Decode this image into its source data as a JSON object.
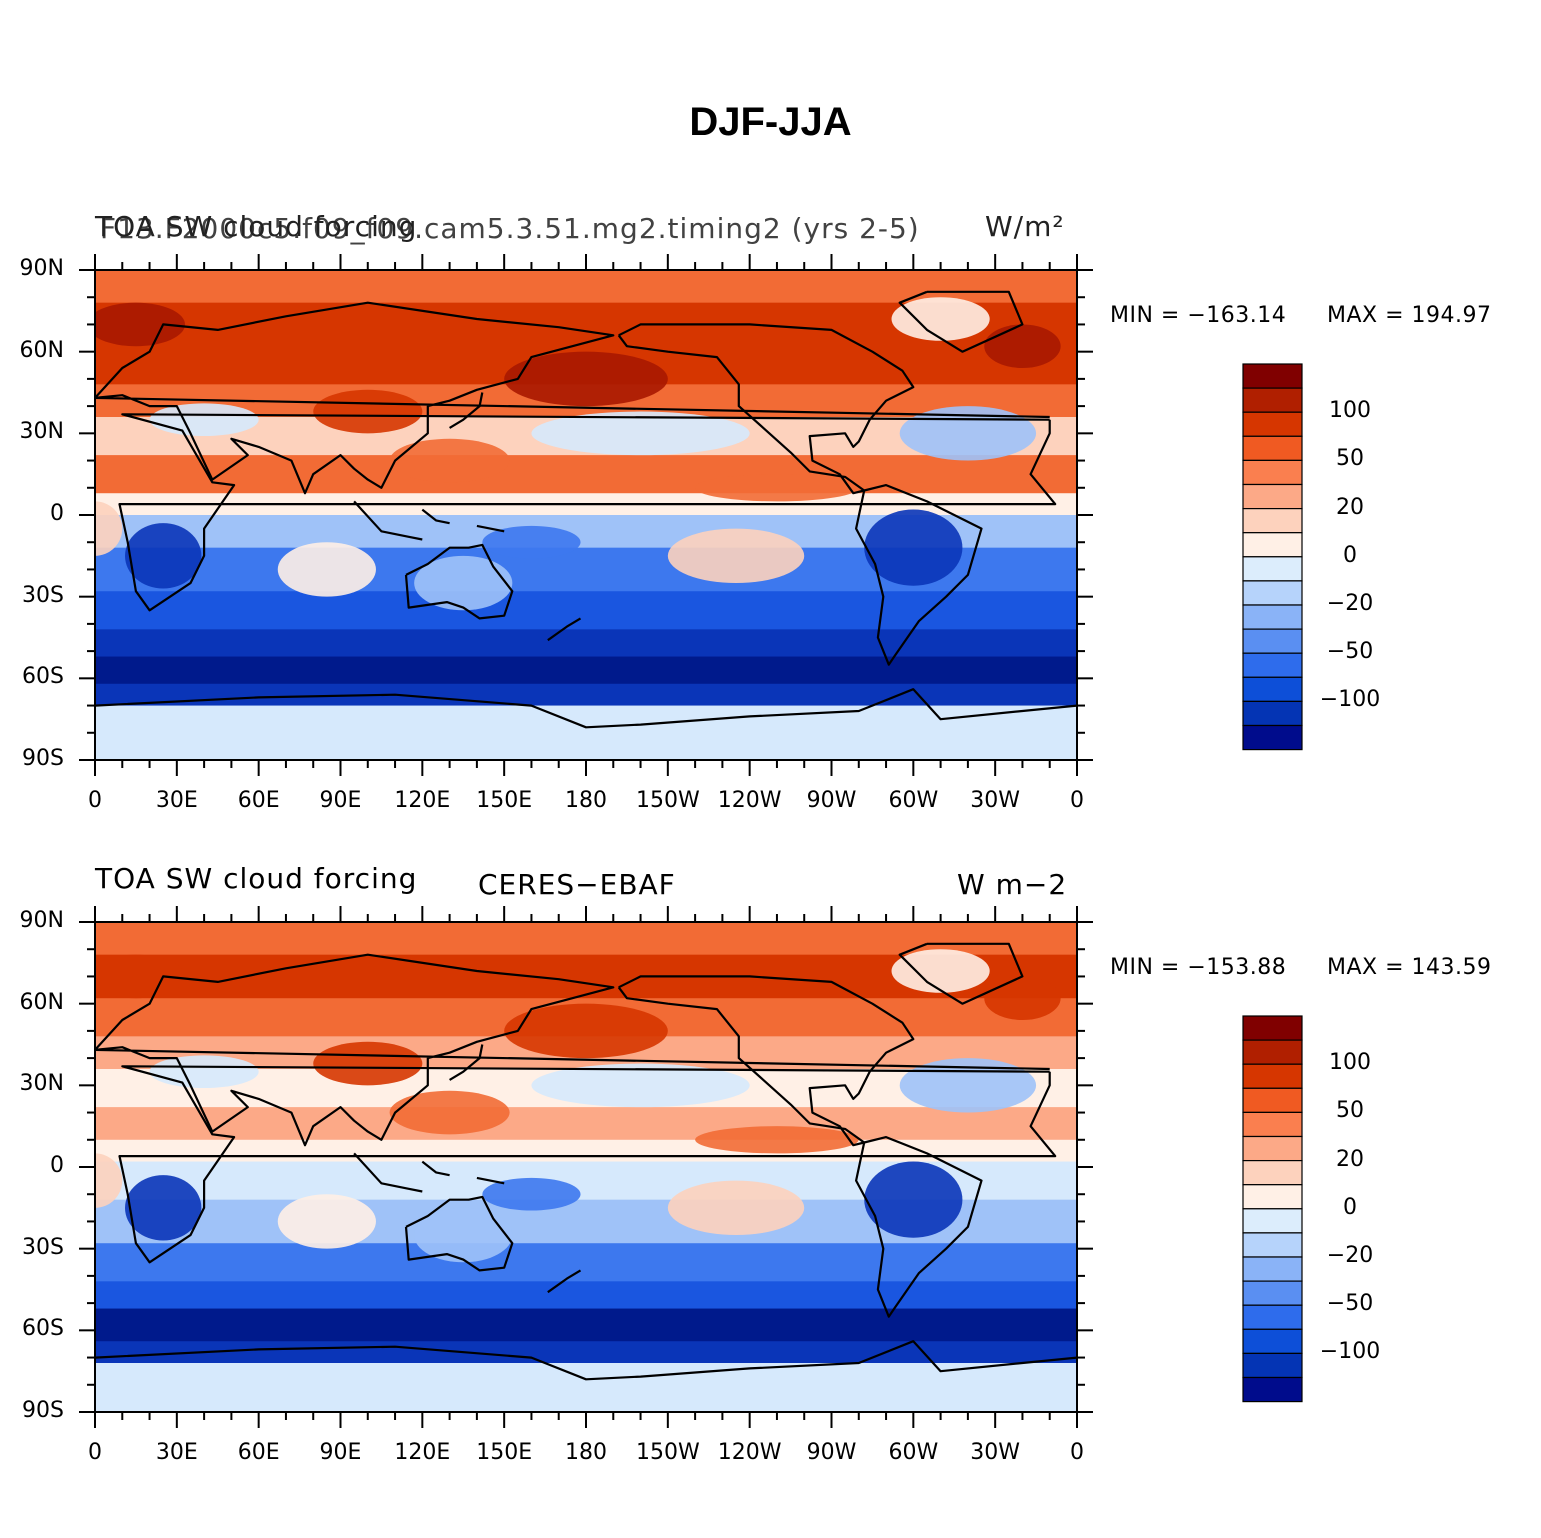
{
  "title": "DJF-JJA",
  "panels": [
    {
      "left_title": "TOA SW cloud forcing",
      "center_title": "F13.F2000c5.f09_f09.cam5.3.51.mg2.timing2 (yrs 2-5)",
      "units": "W/m²",
      "min_label": "MIN = −163.14",
      "max_label": "MAX = 194.97"
    },
    {
      "left_title": "TOA SW cloud forcing",
      "center_title": "CERES−EBAF",
      "units": "W m−2",
      "min_label": "MIN = −153.88",
      "max_label": "MAX = 143.59"
    }
  ],
  "lat_labels": [
    "90N",
    "60N",
    "30N",
    "0",
    "30S",
    "60S",
    "90S"
  ],
  "lon_labels": [
    "0",
    "30E",
    "60E",
    "90E",
    "120E",
    "150E",
    "180",
    "150W",
    "120W",
    "90W",
    "60W",
    "30W",
    "0"
  ],
  "colorbar": {
    "colors": [
      "#800000",
      "#b01f00",
      "#d63600",
      "#f05a22",
      "#fa7f4f",
      "#fca987",
      "#fdd2bd",
      "#fff0e6",
      "#dcedfc",
      "#b6d3fb",
      "#8ab3f7",
      "#5a8ff2",
      "#2e6cec",
      "#0d4fd8",
      "#0434b4",
      "#000c8c"
    ],
    "labels": [
      "100",
      "50",
      "20",
      "0",
      "−20",
      "−50",
      "−100"
    ]
  },
  "map_colors": {
    "deep_red": "#a81800",
    "red": "#d63600",
    "orange": "#f26b35",
    "light_orange": "#fca987",
    "peach": "#fdd2bd",
    "cream": "#fff0e6",
    "pale_blue": "#d6e9fc",
    "light_blue": "#9fc2f8",
    "blue": "#3d78ee",
    "mid_blue": "#1a56e0",
    "dark_blue": "#0a35b8",
    "navy": "#001a8c",
    "coast": "#000000"
  }
}
